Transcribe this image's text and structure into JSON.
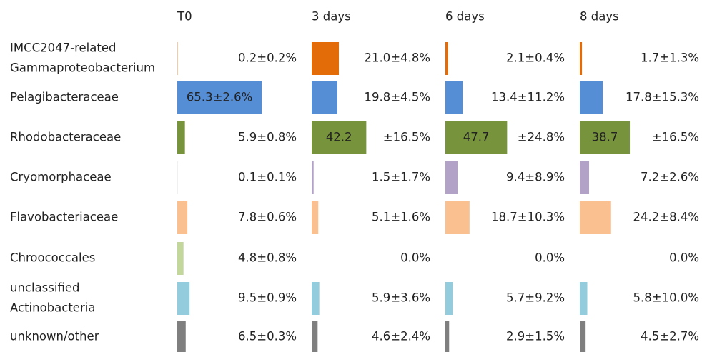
{
  "chart_data": {
    "type": "table-bar",
    "categories": [
      [
        "IMCC2047-related",
        "Gammaproteobacterium"
      ],
      [
        "Pelagibacteraceae"
      ],
      [
        "Rhodobacteraceae"
      ],
      [
        "Cryomorphaceae"
      ],
      [
        "Flavobacteriaceae"
      ],
      [
        "Chroococcales"
      ],
      [
        "unclassified",
        "Actinobacteria"
      ],
      [
        "unknown/other"
      ]
    ],
    "colors": [
      "#e36c09",
      "#558ed5",
      "#77933c",
      "#b3a2c7",
      "#fac090",
      "#c3d69b",
      "#93cddd",
      "#7f7f7f"
    ],
    "series": [
      {
        "name": "T0",
        "values": [
          0.2,
          65.3,
          5.9,
          0.1,
          7.8,
          4.8,
          9.5,
          6.5
        ],
        "errors": [
          0.2,
          2.6,
          0.8,
          0.1,
          0.6,
          0.8,
          0.9,
          0.3
        ],
        "value_labels": [
          "0.2±0.2%",
          "65.3±2.6%",
          "5.9±0.8%",
          "0.1±0.1%",
          "7.8±0.6%",
          "4.8±0.8%",
          "9.5±0.9%",
          "6.5±0.3%"
        ],
        "error_labels": [
          null,
          null,
          null,
          null,
          null,
          null,
          null,
          null
        ]
      },
      {
        "name": "3 days",
        "values": [
          21.0,
          19.8,
          42.2,
          1.5,
          5.1,
          0.0,
          5.9,
          4.6
        ],
        "errors": [
          4.8,
          4.5,
          16.5,
          1.7,
          1.6,
          null,
          3.6,
          2.4
        ],
        "value_labels": [
          "21.0±4.8%",
          "19.8±4.5%",
          "42.2",
          "1.5±1.7%",
          "5.1±1.6%",
          "0.0%",
          "5.9±3.6%",
          "4.6±2.4%"
        ],
        "error_labels": [
          null,
          null,
          "±16.5%",
          null,
          null,
          null,
          null,
          null
        ]
      },
      {
        "name": "6 days",
        "values": [
          2.1,
          13.4,
          47.7,
          9.4,
          18.7,
          0.0,
          5.7,
          2.9
        ],
        "errors": [
          0.4,
          11.2,
          24.8,
          8.9,
          10.3,
          null,
          9.2,
          1.5
        ],
        "value_labels": [
          "2.1±0.4%",
          "13.4±11.2%",
          "47.7",
          "9.4±8.9%",
          "18.7±10.3%",
          "0.0%",
          "5.7±9.2%",
          "2.9±1.5%"
        ],
        "error_labels": [
          null,
          null,
          "±24.8%",
          null,
          null,
          null,
          null,
          null
        ]
      },
      {
        "name": "8 days",
        "values": [
          1.7,
          17.8,
          38.7,
          7.2,
          24.2,
          0.0,
          5.8,
          4.5
        ],
        "errors": [
          1.3,
          15.3,
          16.5,
          2.6,
          8.4,
          null,
          10.0,
          2.7
        ],
        "value_labels": [
          "1.7±1.3%",
          "17.8±15.3%",
          "38.7",
          "7.2±2.6%",
          "24.2±8.4%",
          "0.0%",
          "5.8±10.0%",
          "4.5±2.7%"
        ],
        "error_labels": [
          null,
          null,
          "±16.5%",
          null,
          null,
          null,
          null,
          null
        ]
      }
    ]
  }
}
